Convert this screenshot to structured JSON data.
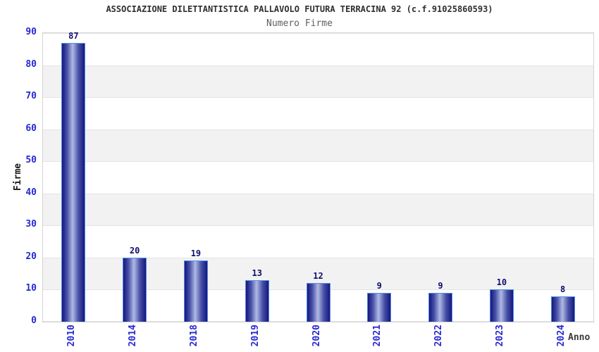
{
  "header": {
    "title": "ASSOCIAZIONE DILETTANTISTICA PALLAVOLO FUTURA TERRACINA 92 (c.f.91025860593)",
    "subtitle": "Numero Firme"
  },
  "chart_data": {
    "type": "bar",
    "title": "ASSOCIAZIONE DILETTANTISTICA PALLAVOLO FUTURA TERRACINA 92 (c.f.91025860593)",
    "subtitle": "Numero Firme",
    "categories": [
      "2010",
      "2014",
      "2018",
      "2019",
      "2020",
      "2021",
      "2022",
      "2023",
      "2024"
    ],
    "values": [
      87,
      20,
      19,
      13,
      12,
      9,
      9,
      10,
      8
    ],
    "xlabel": "Anno",
    "ylabel": "Firme",
    "ylim": [
      0,
      90
    ],
    "ytick_step": 10,
    "yticks": [
      0,
      10,
      20,
      30,
      40,
      50,
      60,
      70,
      80,
      90
    ],
    "grid": "horizontal gridlines with alternating shaded bands",
    "legend": "none",
    "colors": {
      "bar_edge_dark": "#17177c",
      "bar_mid": "#4550a6",
      "bar_center_light": "#b0b9e4",
      "bar_border": "#4f8ee8",
      "tick_text_blue": "#2727d2",
      "value_label_navy": "#0e0e6e",
      "band_shaded": "#f2f2f2",
      "grid_line": "#e4e4e4",
      "plot_border": "#d4d4d4",
      "title_text": "#2f2f2f",
      "subtitle_text": "#5f5f5f",
      "axis_label_text": "#1a1a1a"
    }
  }
}
